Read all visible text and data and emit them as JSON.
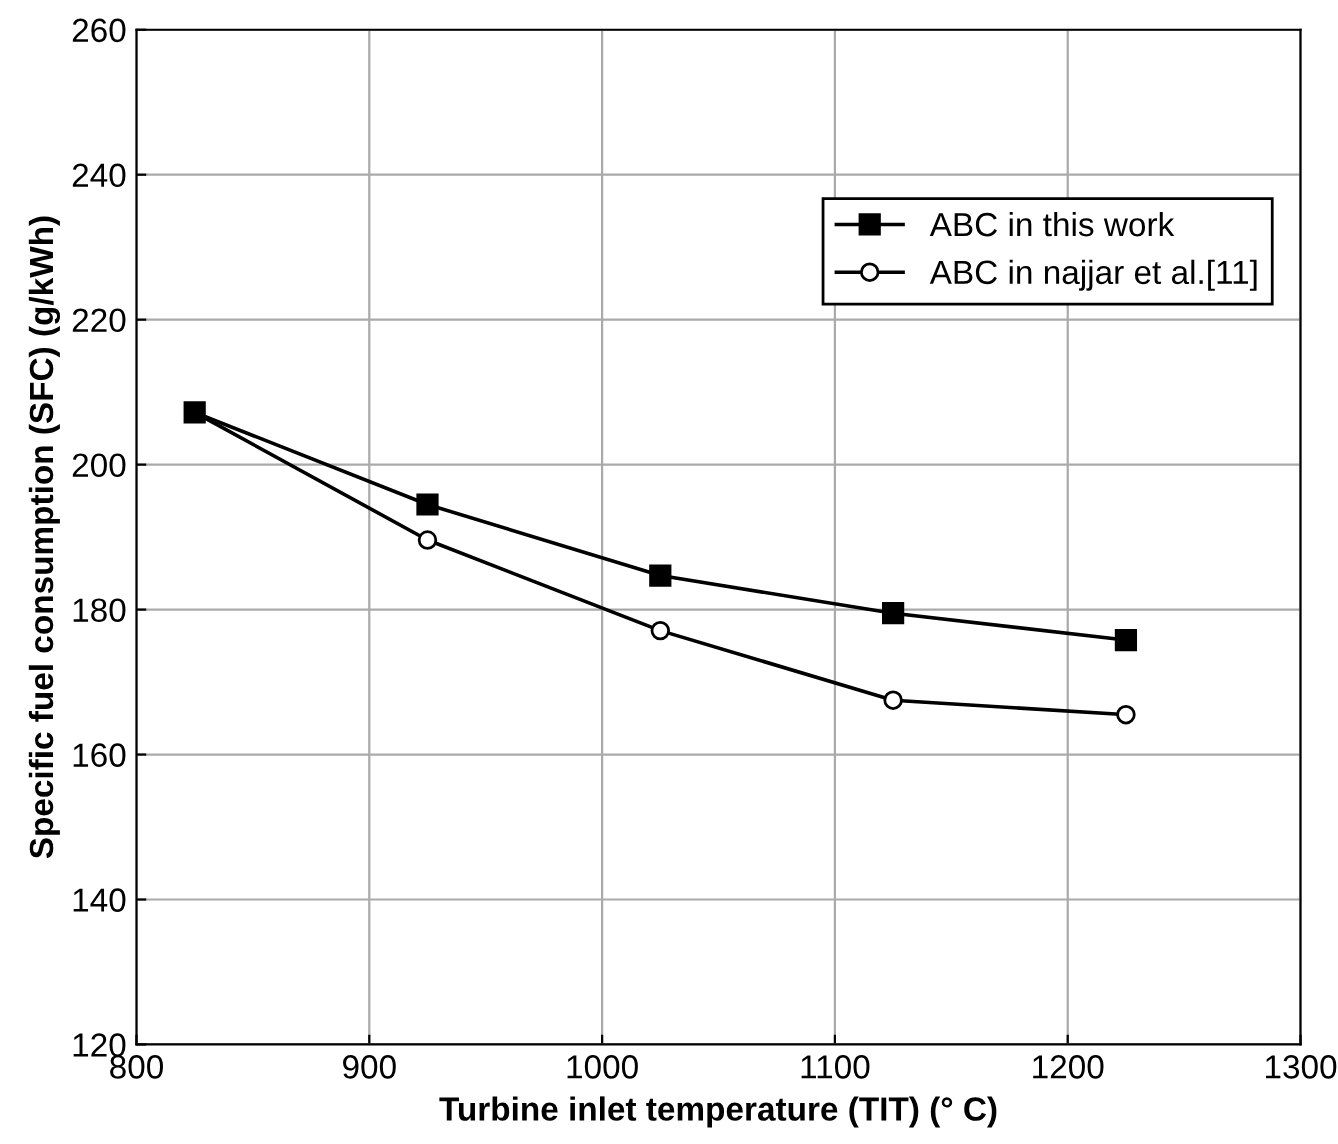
{
  "chart_data": {
    "type": "line",
    "xlabel": "Turbine inlet temperature (TIT) (° C)",
    "ylabel": "Specific fuel consumption (SFC) (g/kWh)",
    "x": [
      825,
      925,
      1025,
      1125,
      1225
    ],
    "series": [
      {
        "name": "ABC in this work",
        "color": "#000000",
        "marker": "square",
        "values": [
          207.2,
          194.5,
          184.7,
          179.5,
          175.8
        ]
      },
      {
        "name": "ABC in najjar et al.[11]",
        "color": "#000000",
        "marker": "circle",
        "values": [
          207.2,
          189.6,
          177.1,
          167.5,
          165.5
        ]
      }
    ],
    "xlim": [
      800,
      1300
    ],
    "xticks": [
      800,
      900,
      1000,
      1100,
      1200,
      1300
    ],
    "ylim": [
      120,
      260
    ],
    "yticks": [
      120,
      140,
      160,
      180,
      200,
      220,
      240,
      260
    ],
    "grid": true,
    "legend": "top right",
    "line_style": "solid"
  }
}
